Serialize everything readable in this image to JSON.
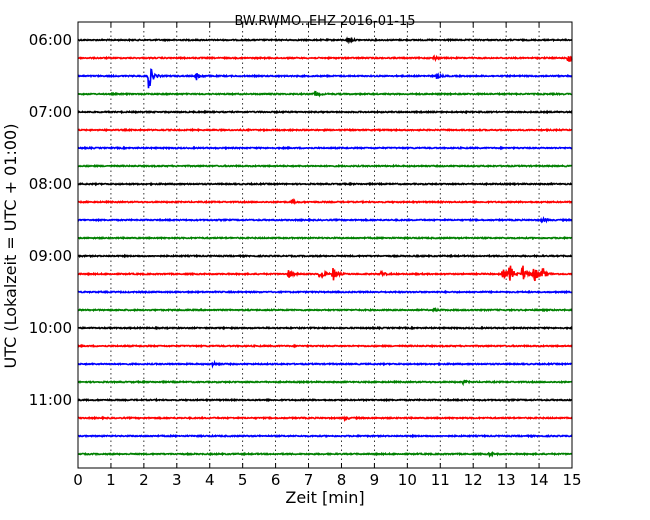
{
  "chart_data": {
    "type": "line",
    "title": "BW.RWMO..EHZ 2016-01-15",
    "xlabel": "Zeit  [min]",
    "ylabel": "UTC (Lokalzeit = UTC + 01:00)",
    "xlim": [
      0,
      15
    ],
    "x_ticks": [
      "0",
      "1",
      "2",
      "3",
      "4",
      "5",
      "6",
      "7",
      "8",
      "9",
      "10",
      "11",
      "12",
      "13",
      "14",
      "15"
    ],
    "y_ticks": [
      "06:00",
      "07:00",
      "08:00",
      "09:00",
      "10:00",
      "11:00"
    ],
    "grid": "vertical-dotted",
    "trace_colors": [
      "#000000",
      "#ff0000",
      "#0000ff",
      "#008000"
    ],
    "traces": [
      {
        "start": "06:00",
        "events": [
          {
            "t": 8.2,
            "amp": 0.15
          }
        ]
      },
      {
        "start": "06:15",
        "events": [
          {
            "t": 10.8,
            "amp": 0.12
          },
          {
            "t": 14.9,
            "amp": 0.65
          }
        ]
      },
      {
        "start": "06:30",
        "events": [
          {
            "t": 2.15,
            "amp": 0.9
          },
          {
            "t": 3.6,
            "amp": 0.25
          },
          {
            "t": 10.9,
            "amp": 0.15
          }
        ]
      },
      {
        "start": "06:45",
        "events": [
          {
            "t": 7.2,
            "amp": 0.18
          }
        ]
      },
      {
        "start": "07:00",
        "events": []
      },
      {
        "start": "07:15",
        "events": []
      },
      {
        "start": "07:30",
        "events": []
      },
      {
        "start": "07:45",
        "events": []
      },
      {
        "start": "08:00",
        "events": []
      },
      {
        "start": "08:15",
        "events": [
          {
            "t": 6.5,
            "amp": 0.1
          }
        ]
      },
      {
        "start": "08:30",
        "events": [
          {
            "t": 14.1,
            "amp": 0.12
          }
        ]
      },
      {
        "start": "08:45",
        "events": []
      },
      {
        "start": "09:00",
        "events": []
      },
      {
        "start": "09:15",
        "events": [
          {
            "t": 6.4,
            "amp": 0.25
          },
          {
            "t": 7.35,
            "amp": 0.4
          },
          {
            "t": 7.75,
            "amp": 0.45
          },
          {
            "t": 9.2,
            "amp": 0.15
          },
          {
            "t": 12.9,
            "amp": 0.3
          },
          {
            "t": 13.1,
            "amp": 0.7
          },
          {
            "t": 13.5,
            "amp": 0.6
          },
          {
            "t": 13.85,
            "amp": 0.55
          },
          {
            "t": 14.1,
            "amp": 0.35
          }
        ]
      },
      {
        "start": "09:30",
        "events": []
      },
      {
        "start": "09:45",
        "events": [
          {
            "t": 10.8,
            "amp": 0.1
          }
        ]
      },
      {
        "start": "10:00",
        "events": []
      },
      {
        "start": "10:15",
        "events": []
      },
      {
        "start": "10:30",
        "events": [
          {
            "t": 4.1,
            "amp": 0.14
          }
        ]
      },
      {
        "start": "10:45",
        "events": [
          {
            "t": 11.7,
            "amp": 0.1
          }
        ]
      },
      {
        "start": "11:00",
        "events": []
      },
      {
        "start": "11:15",
        "events": [
          {
            "t": 8.1,
            "amp": 0.1
          }
        ]
      },
      {
        "start": "11:30",
        "events": []
      },
      {
        "start": "11:45",
        "events": [
          {
            "t": 12.5,
            "amp": 0.1
          }
        ]
      }
    ]
  }
}
